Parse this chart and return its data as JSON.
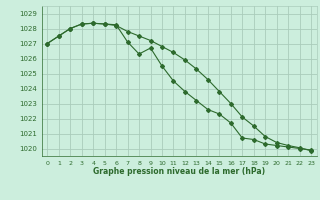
{
  "title": "Graphe pression niveau de la mer (hPa)",
  "background_color": "#cceedd",
  "grid_color": "#aaccbb",
  "line_color": "#2d6a2d",
  "xlim": [
    -0.5,
    23.5
  ],
  "ylim": [
    1019.5,
    1029.5
  ],
  "yticks": [
    1020,
    1021,
    1022,
    1023,
    1024,
    1025,
    1026,
    1027,
    1028,
    1029
  ],
  "xticks": [
    0,
    1,
    2,
    3,
    4,
    5,
    6,
    7,
    8,
    9,
    10,
    11,
    12,
    13,
    14,
    15,
    16,
    17,
    18,
    19,
    20,
    21,
    22,
    23
  ],
  "series1": [
    1027.0,
    1027.5,
    1028.0,
    1028.3,
    1028.35,
    1028.3,
    1028.2,
    1027.8,
    1027.5,
    1027.2,
    1026.8,
    1026.4,
    1025.9,
    1025.3,
    1024.6,
    1023.8,
    1023.0,
    1022.1,
    1021.5,
    1020.8,
    1020.4,
    1020.2,
    1020.05,
    1019.85
  ],
  "series2": [
    1027.0,
    1027.5,
    1028.0,
    1028.3,
    1028.35,
    1028.3,
    1028.25,
    1027.1,
    1026.3,
    1026.7,
    1025.5,
    1024.5,
    1023.8,
    1023.2,
    1022.6,
    1022.3,
    1021.7,
    1020.7,
    1020.6,
    1020.3,
    1020.2,
    1020.1,
    1020.0,
    1019.9
  ]
}
